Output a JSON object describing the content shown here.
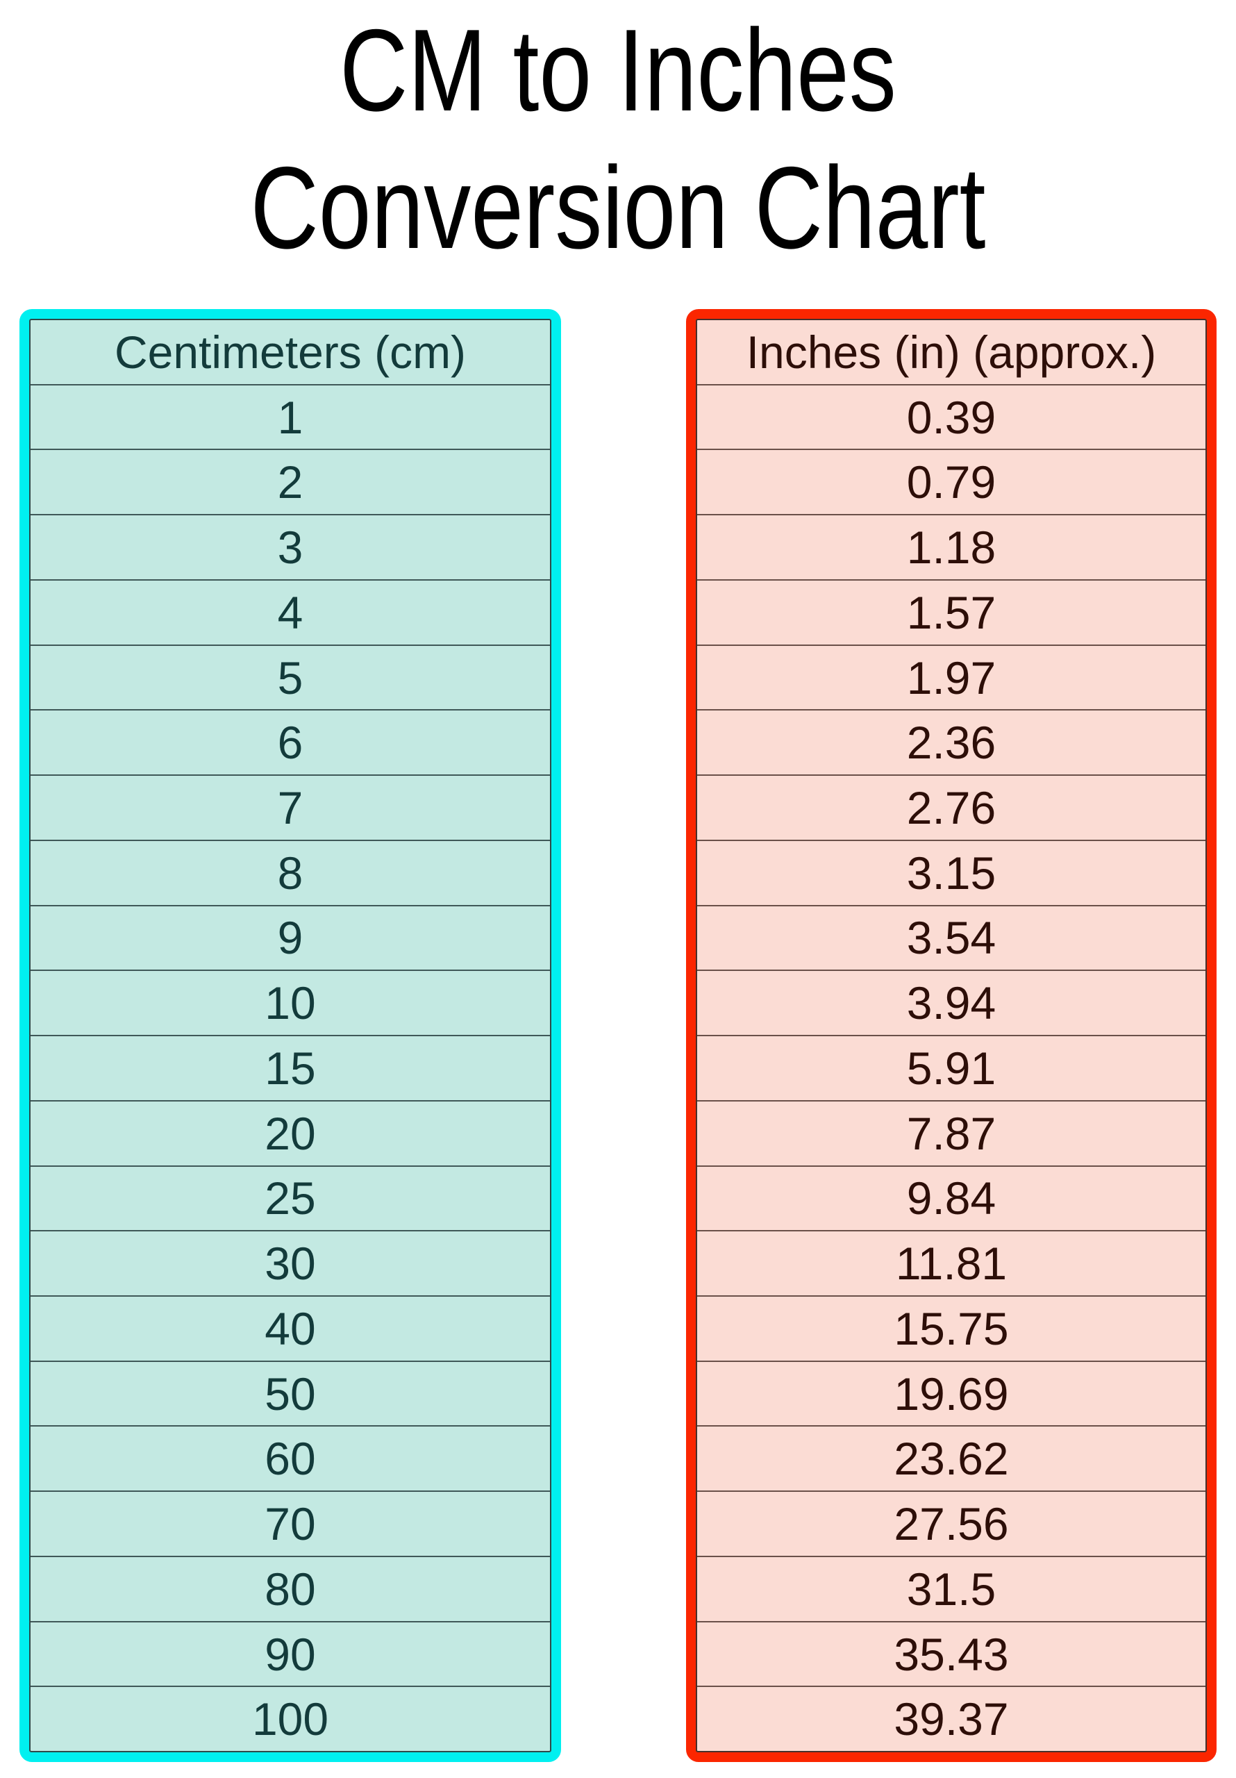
{
  "title": {
    "line1": "CM to Inches",
    "line2": "Conversion Chart"
  },
  "left_table": {
    "header": "Centimeters (cm)"
  },
  "right_table": {
    "header": "Inches (in) (approx.)"
  },
  "colors": {
    "cyan_border": "#00F0F0",
    "teal_bg": "#C3E9E2",
    "cm_text": "#133B3B",
    "cm_divider": "#3F5858",
    "cm_inner_border": "#2E4A4A",
    "red_border": "#FB2600",
    "pink_bg": "#FBDCD4",
    "in_text": "#2D0E08",
    "in_divider": "#6A5049",
    "in_inner_border": "#47302B",
    "title_text": "#000000",
    "page_bg": "#FFFFFF"
  },
  "chart_data": {
    "type": "table",
    "title": "CM to Inches Conversion Chart",
    "columns": [
      "Centimeters (cm)",
      "Inches (in) (approx.)"
    ],
    "rows": [
      [
        1,
        0.39
      ],
      [
        2,
        0.79
      ],
      [
        3,
        1.18
      ],
      [
        4,
        1.57
      ],
      [
        5,
        1.97
      ],
      [
        6,
        2.36
      ],
      [
        7,
        2.76
      ],
      [
        8,
        3.15
      ],
      [
        9,
        3.54
      ],
      [
        10,
        3.94
      ],
      [
        15,
        5.91
      ],
      [
        20,
        7.87
      ],
      [
        25,
        9.84
      ],
      [
        30,
        11.81
      ],
      [
        40,
        15.75
      ],
      [
        50,
        19.69
      ],
      [
        60,
        23.62
      ],
      [
        70,
        27.56
      ],
      [
        80,
        31.5
      ],
      [
        90,
        35.43
      ],
      [
        100,
        39.37
      ]
    ]
  }
}
